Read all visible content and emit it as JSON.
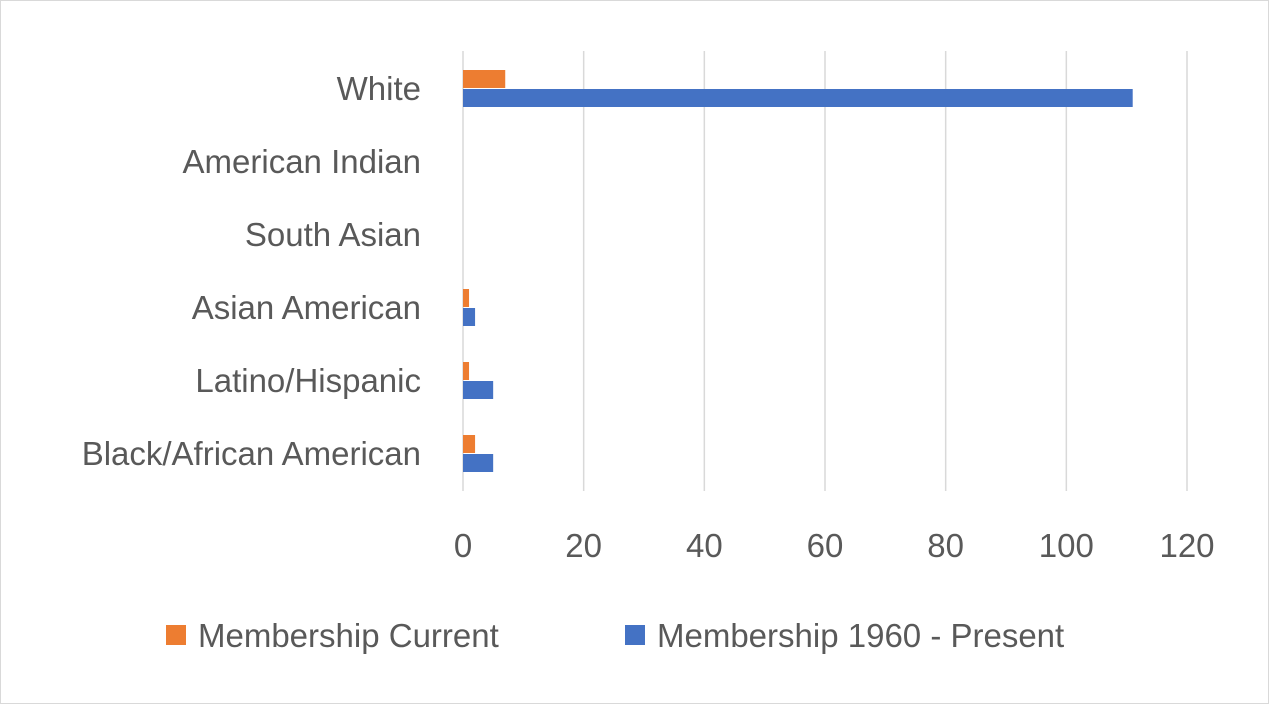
{
  "chart_data": {
    "type": "bar",
    "orientation": "horizontal",
    "title": "",
    "xlabel": "",
    "ylabel": "",
    "categories": [
      "White",
      "American Indian",
      "South Asian",
      "Asian American",
      "Latino/Hispanic",
      "Black/African American"
    ],
    "series": [
      {
        "name": "Membership Current",
        "color": "#ED7D31",
        "values": [
          7,
          0,
          0,
          1,
          1,
          2
        ]
      },
      {
        "name": "Membership 1960 - Present",
        "color": "#4472C4",
        "values": [
          111,
          0,
          0,
          2,
          5,
          5
        ]
      }
    ],
    "xlim": [
      0,
      120
    ],
    "x_ticks": [
      "0",
      "20",
      "40",
      "60",
      "80",
      "100",
      "120"
    ],
    "grid": true,
    "legend_position": "bottom"
  }
}
